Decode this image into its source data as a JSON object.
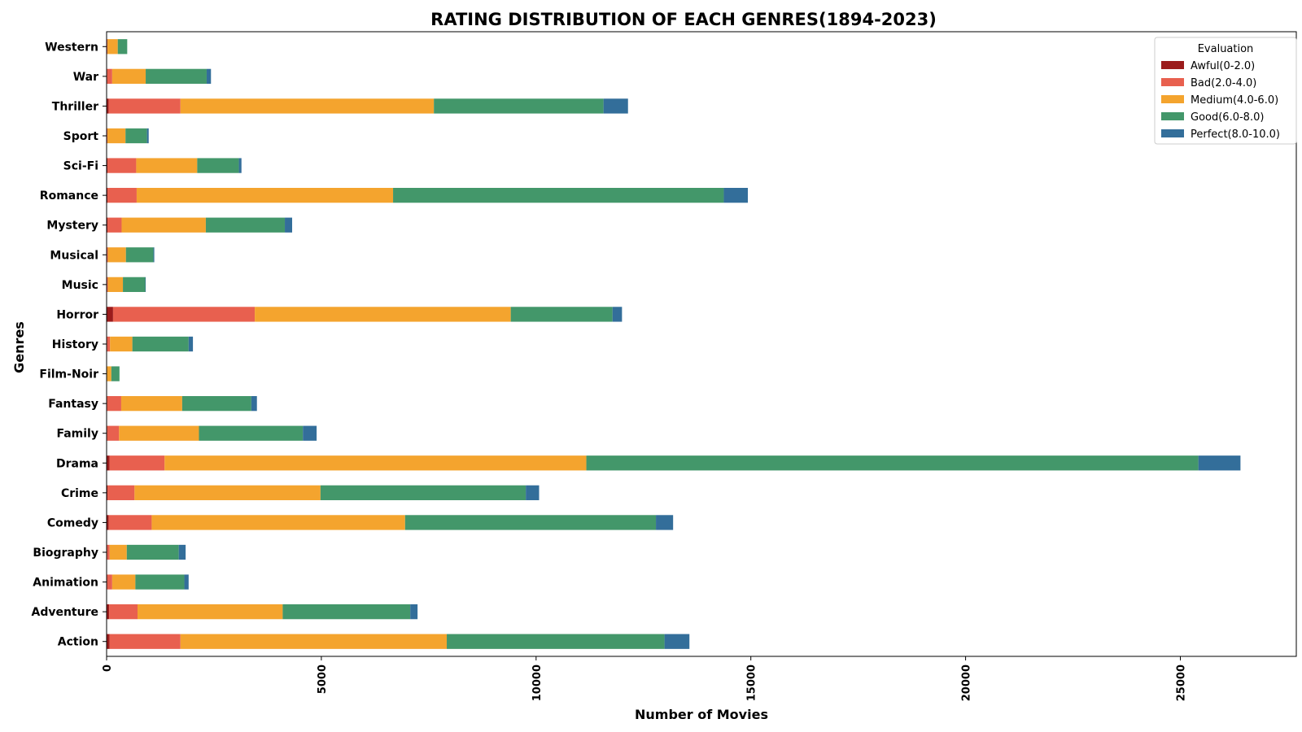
{
  "chart_data": {
    "type": "bar",
    "orientation": "horizontal",
    "stacked": true,
    "title": "RATING DISTRIBUTION OF EACH GENRES(1894-2023)",
    "xlabel": "Number of Movies",
    "ylabel": "Genres",
    "xlim": [
      0,
      27700
    ],
    "xticks": [
      "0",
      "5000",
      "10000",
      "15000",
      "20000",
      "25000"
    ],
    "grid": false,
    "legend": {
      "title": "Evaluation",
      "position": "top-right"
    },
    "categories": [
      "Action",
      "Adventure",
      "Animation",
      "Biography",
      "Comedy",
      "Crime",
      "Drama",
      "Family",
      "Fantasy",
      "Film-Noir",
      "History",
      "Horror",
      "Music",
      "Musical",
      "Mystery",
      "Romance",
      "Sci-Fi",
      "Sport",
      "Thriller",
      "War",
      "Western"
    ],
    "series": [
      {
        "name": "Awful(0-2.0)",
        "color": "#9b1c1c",
        "values": [
          70,
          60,
          10,
          10,
          50,
          20,
          70,
          10,
          10,
          0,
          10,
          150,
          10,
          10,
          20,
          20,
          20,
          10,
          50,
          10,
          10
        ]
      },
      {
        "name": "Bad(2.0-4.0)",
        "color": "#e8604f",
        "values": [
          1650,
          660,
          120,
          60,
          1000,
          630,
          1280,
          280,
          330,
          10,
          70,
          3300,
          20,
          20,
          330,
          680,
          670,
          10,
          1670,
          120,
          10
        ]
      },
      {
        "name": "Medium(4.0-6.0)",
        "color": "#f4a42e",
        "values": [
          6200,
          3380,
          540,
          400,
          5900,
          4330,
          9820,
          1860,
          1420,
          100,
          520,
          5960,
          350,
          420,
          1960,
          5970,
          1420,
          420,
          5900,
          780,
          240
        ]
      },
      {
        "name": "Good(6.0-8.0)",
        "color": "#43976a",
        "values": [
          5070,
          2970,
          1140,
          1210,
          5840,
          4780,
          14250,
          2420,
          1610,
          190,
          1310,
          2370,
          520,
          640,
          1840,
          7700,
          970,
          500,
          3950,
          1420,
          220
        ]
      },
      {
        "name": "Perfect(8.0-10.0)",
        "color": "#336e9a",
        "values": [
          580,
          170,
          100,
          160,
          400,
          310,
          980,
          320,
          130,
          0,
          100,
          220,
          10,
          20,
          170,
          560,
          60,
          40,
          570,
          100,
          0
        ]
      }
    ]
  }
}
